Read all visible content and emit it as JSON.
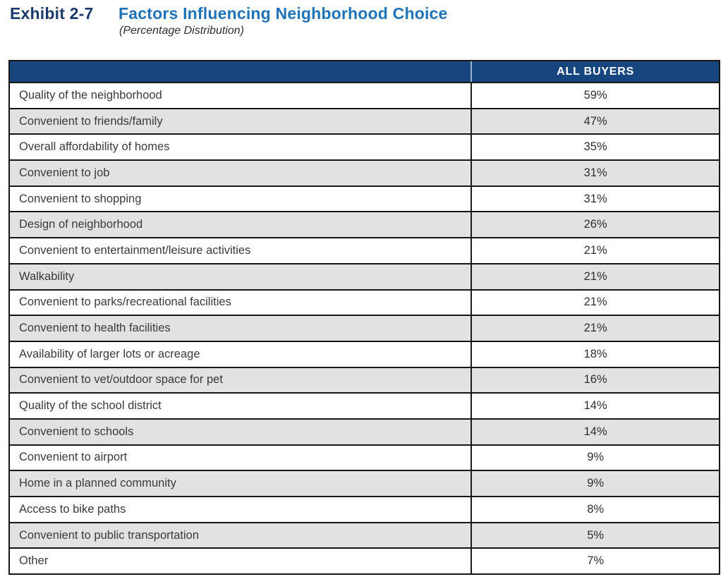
{
  "page": {
    "exhibit_label": "Exhibit 2-7",
    "title": "Factors Influencing Neighborhood Choice",
    "subtitle": "(Percentage Distribution)"
  },
  "colors": {
    "header_navy": "#17467f",
    "exhibit_navy": "#1b3a6b",
    "title_blue": "#2173b8",
    "stripe_gray": "#e2e2e2",
    "border_black": "#161616",
    "header_text": "#ffffff"
  },
  "table": {
    "header": {
      "all_buyers": "ALL BUYERS"
    },
    "rows": [
      {
        "factor": "Quality of the neighborhood",
        "all_buyers": "59%"
      },
      {
        "factor": "Convenient to friends/family",
        "all_buyers": "47%"
      },
      {
        "factor": "Overall affordability of homes",
        "all_buyers": "35%"
      },
      {
        "factor": "Convenient to job",
        "all_buyers": "31%"
      },
      {
        "factor": "Convenient to shopping",
        "all_buyers": "31%"
      },
      {
        "factor": "Design of neighborhood",
        "all_buyers": "26%"
      },
      {
        "factor": "Convenient to entertainment/leisure activities",
        "all_buyers": "21%"
      },
      {
        "factor": "Walkability",
        "all_buyers": "21%"
      },
      {
        "factor": "Convenient to parks/recreational facilities",
        "all_buyers": "21%"
      },
      {
        "factor": "Convenient to health facilities",
        "all_buyers": "21%"
      },
      {
        "factor": "Availability of larger lots or acreage",
        "all_buyers": "18%"
      },
      {
        "factor": "Convenient to vet/outdoor space for pet",
        "all_buyers": "16%"
      },
      {
        "factor": "Quality of the school district",
        "all_buyers": "14%"
      },
      {
        "factor": "Convenient to schools",
        "all_buyers": "14%"
      },
      {
        "factor": "Convenient to airport",
        "all_buyers": "9%"
      },
      {
        "factor": "Home in a planned community",
        "all_buyers": "9%"
      },
      {
        "factor": "Access to bike paths",
        "all_buyers": "8%"
      },
      {
        "factor": "Convenient to public transportation",
        "all_buyers": "5%"
      },
      {
        "factor": "Other",
        "all_buyers": "7%"
      }
    ]
  },
  "chart_data": {
    "type": "table",
    "title": "Factors Influencing Neighborhood Choice",
    "subtitle": "(Percentage Distribution)",
    "columns": [
      "Factor",
      "ALL BUYERS"
    ],
    "categories": [
      "Quality of the neighborhood",
      "Convenient to friends/family",
      "Overall affordability of homes",
      "Convenient to job",
      "Convenient to shopping",
      "Design of neighborhood",
      "Convenient to entertainment/leisure activities",
      "Walkability",
      "Convenient to parks/recreational facilities",
      "Convenient to health facilities",
      "Availability of larger lots or acreage",
      "Convenient to vet/outdoor space for pet",
      "Quality of the school district",
      "Convenient to schools",
      "Convenient to airport",
      "Home in a planned community",
      "Access to bike paths",
      "Convenient to public transportation",
      "Other"
    ],
    "values": [
      59,
      47,
      35,
      31,
      31,
      26,
      21,
      21,
      21,
      21,
      18,
      16,
      14,
      14,
      9,
      9,
      8,
      5,
      7
    ],
    "unit": "percent"
  }
}
